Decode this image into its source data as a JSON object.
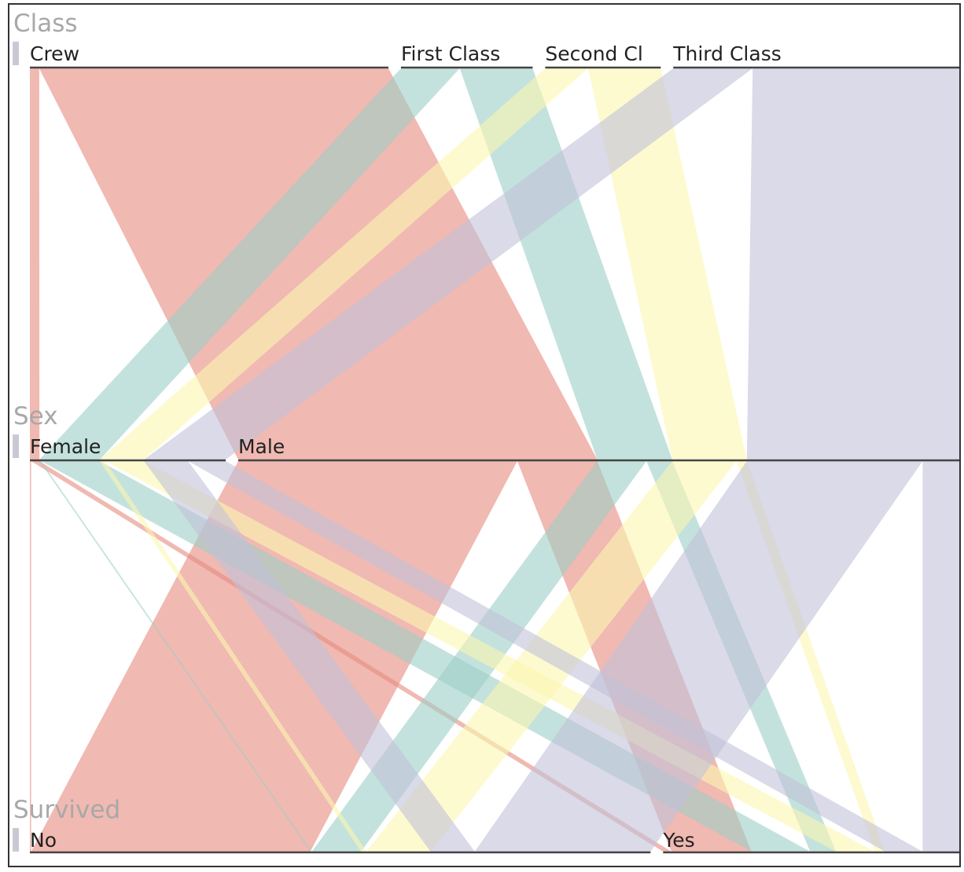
{
  "chart_data": {
    "type": "parallel-sets",
    "dimensions": [
      {
        "name": "Class",
        "categories": [
          "Crew",
          "First Class",
          "Second Cl",
          "Third Class"
        ]
      },
      {
        "name": "Sex",
        "categories": [
          "Female",
          "Male"
        ]
      },
      {
        "name": "Survived",
        "categories": [
          "No",
          "Yes"
        ]
      }
    ],
    "color_by": "Class",
    "colors": {
      "Crew": "#e68a7e",
      "First Class": "#9dcfc6",
      "Second Cl": "#fbf7b0",
      "Third Class": "#c2c2d9"
    },
    "counts": [
      {
        "Class": "Crew",
        "Sex": "Female",
        "Survived": "No",
        "value": 3
      },
      {
        "Class": "Crew",
        "Sex": "Female",
        "Survived": "Yes",
        "value": 20
      },
      {
        "Class": "Crew",
        "Sex": "Male",
        "Survived": "No",
        "value": 670
      },
      {
        "Class": "Crew",
        "Sex": "Male",
        "Survived": "Yes",
        "value": 192
      },
      {
        "Class": "First Class",
        "Sex": "Female",
        "Survived": "No",
        "value": 4
      },
      {
        "Class": "First Class",
        "Sex": "Female",
        "Survived": "Yes",
        "value": 141
      },
      {
        "Class": "First Class",
        "Sex": "Male",
        "Survived": "No",
        "value": 118
      },
      {
        "Class": "First Class",
        "Sex": "Male",
        "Survived": "Yes",
        "value": 62
      },
      {
        "Class": "Second Cl",
        "Sex": "Female",
        "Survived": "No",
        "value": 13
      },
      {
        "Class": "Second Cl",
        "Sex": "Female",
        "Survived": "Yes",
        "value": 93
      },
      {
        "Class": "Second Cl",
        "Sex": "Male",
        "Survived": "No",
        "value": 154
      },
      {
        "Class": "Second Cl",
        "Sex": "Male",
        "Survived": "Yes",
        "value": 25
      },
      {
        "Class": "Third Class",
        "Sex": "Female",
        "Survived": "No",
        "value": 106
      },
      {
        "Class": "Third Class",
        "Sex": "Female",
        "Survived": "Yes",
        "value": 90
      },
      {
        "Class": "Third Class",
        "Sex": "Male",
        "Survived": "No",
        "value": 422
      },
      {
        "Class": "Third Class",
        "Sex": "Male",
        "Survived": "Yes",
        "value": 88
      }
    ]
  }
}
